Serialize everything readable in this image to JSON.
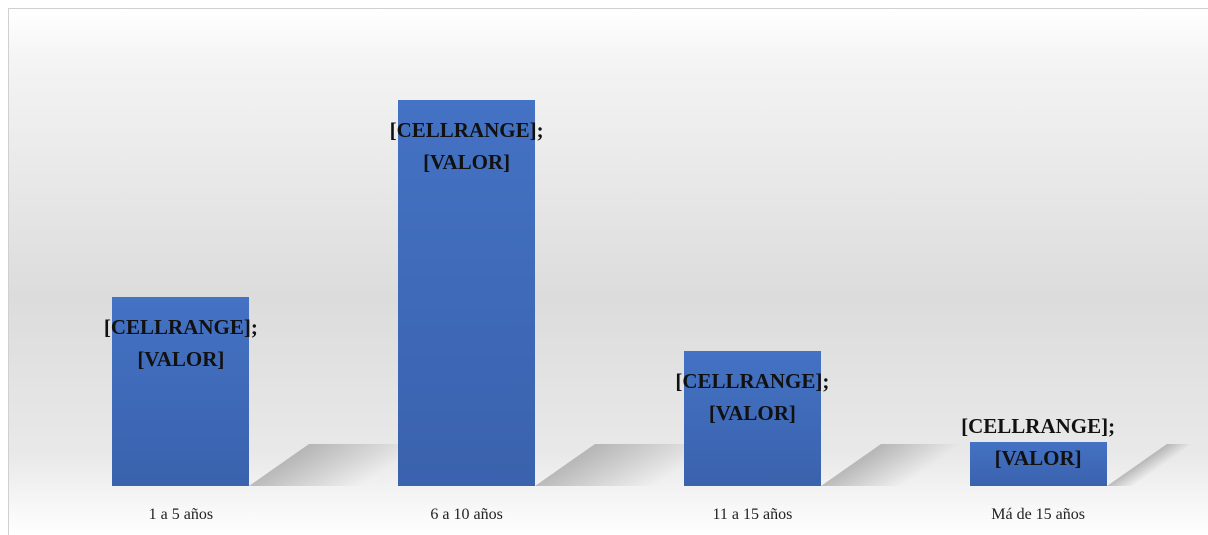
{
  "chart_data": {
    "type": "bar",
    "categories": [
      "1 a 5 años",
      "6 a 10 años",
      "11 a 15 años",
      "Má de 15 años"
    ],
    "values": [
      189,
      386,
      135,
      44
    ],
    "value_labels": [
      "[CELLRANGE]; [VALOR]",
      "[CELLRANGE]; [VALOR]",
      "[CELLRANGE]; [VALOR]",
      "[CELLRANGE]; [VALOR]"
    ],
    "color": "#4472c4"
  }
}
